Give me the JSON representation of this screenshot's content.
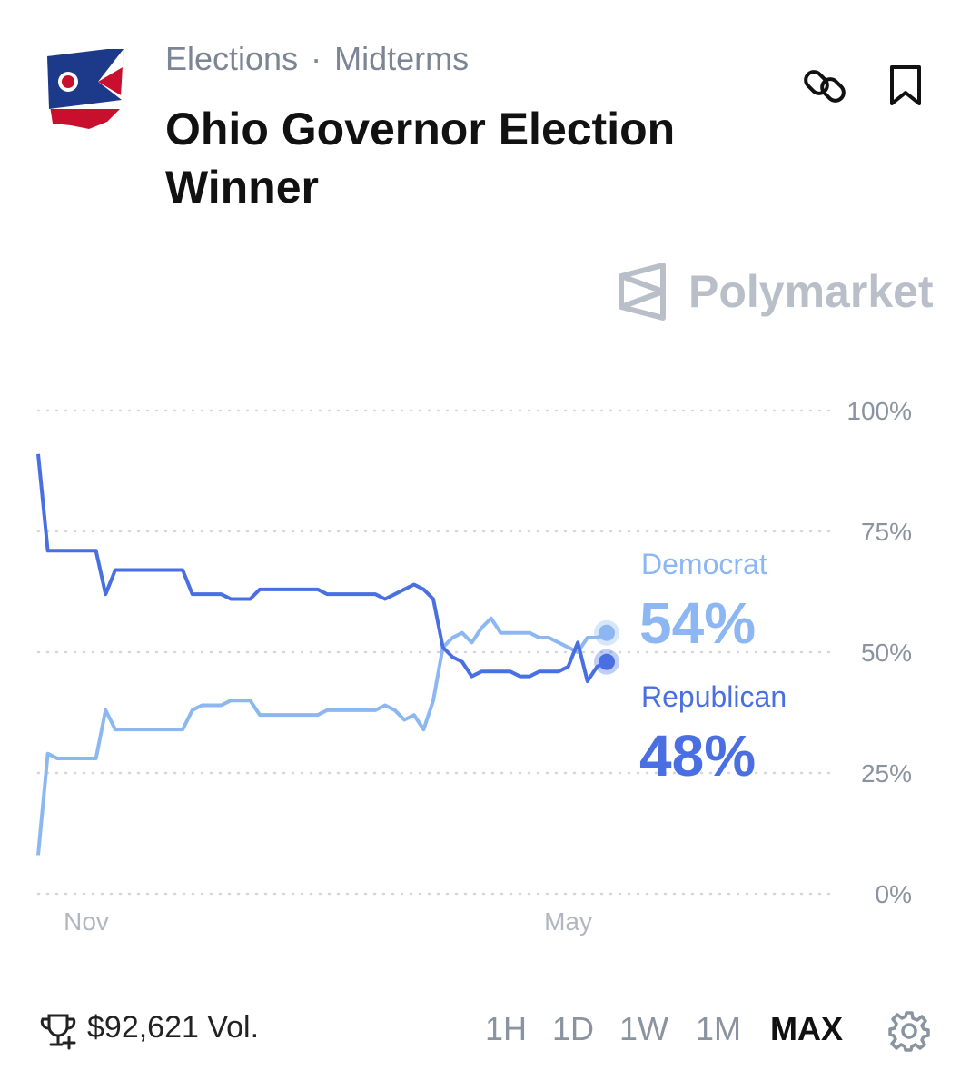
{
  "header": {
    "breadcrumb": [
      "Elections",
      "Midterms"
    ],
    "title": "Ohio Governor Election Winner",
    "brand": "Polymarket"
  },
  "chart_data": {
    "type": "line",
    "categories": [
      null,
      null,
      null,
      null,
      null,
      "Nov",
      null,
      null,
      null,
      null,
      null,
      null,
      null,
      null,
      null,
      null,
      null,
      null,
      null,
      null,
      null,
      null,
      null,
      null,
      null,
      null,
      null,
      null,
      null,
      null,
      null,
      null,
      null,
      null,
      null,
      null,
      null,
      null,
      null,
      null,
      null,
      null,
      null,
      null,
      null,
      null,
      null,
      null,
      null,
      null,
      null,
      null,
      null,
      null,
      null,
      "May",
      null,
      null,
      null,
      null
    ],
    "series": [
      {
        "name": "Democrat",
        "color": "#8db7f2",
        "current": "54%",
        "values": [
          8,
          29,
          28,
          28,
          28,
          28,
          28,
          38,
          34,
          34,
          34,
          34,
          34,
          34,
          34,
          34,
          38,
          39,
          39,
          39,
          40,
          40,
          40,
          37,
          37,
          37,
          37,
          37,
          37,
          37,
          38,
          38,
          38,
          38,
          38,
          38,
          39,
          38,
          36,
          37,
          34,
          40,
          51,
          53,
          54,
          52,
          55,
          57,
          54,
          54,
          54,
          54,
          53,
          53,
          52,
          51,
          50,
          53,
          53,
          54
        ]
      },
      {
        "name": "Republican",
        "color": "#4a6fe3",
        "current": "48%",
        "values": [
          91,
          71,
          71,
          71,
          71,
          71,
          71,
          62,
          67,
          67,
          67,
          67,
          67,
          67,
          67,
          67,
          62,
          62,
          62,
          62,
          61,
          61,
          61,
          63,
          63,
          63,
          63,
          63,
          63,
          63,
          62,
          62,
          62,
          62,
          62,
          62,
          61,
          62,
          63,
          64,
          63,
          61,
          51,
          49,
          48,
          45,
          46,
          46,
          46,
          46,
          45,
          45,
          46,
          46,
          46,
          47,
          52,
          44,
          47,
          48
        ]
      }
    ],
    "ylim": [
      0,
      100
    ],
    "yticks": [
      {
        "value": 0,
        "label": "0%"
      },
      {
        "value": 25,
        "label": "25%"
      },
      {
        "value": 50,
        "label": "50%"
      },
      {
        "value": 75,
        "label": "75%"
      },
      {
        "value": 100,
        "label": "100%"
      }
    ],
    "grid": true
  },
  "footer": {
    "volume": "$92,621 Vol.",
    "ranges": [
      "1H",
      "1D",
      "1W",
      "1M",
      "MAX"
    ],
    "active_range": "MAX"
  }
}
